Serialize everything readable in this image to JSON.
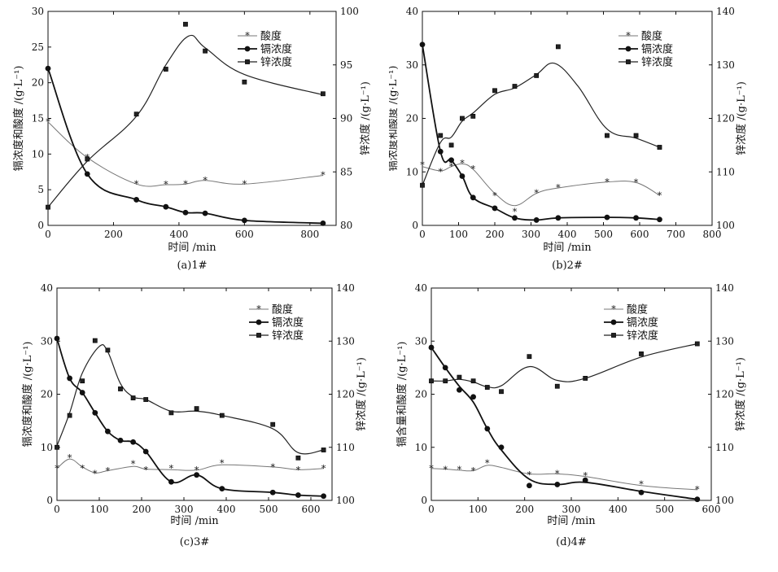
{
  "chart_data": [
    {
      "type": "line",
      "caption": "(a)1#",
      "xlabel": "时间 /min",
      "ylabel_left": "镉浓度和酸度 /(g·L⁻¹)",
      "ylabel_right": "锌浓度 /(g·L⁻¹)",
      "xlim": [
        0,
        880
      ],
      "xticks": [
        0,
        200,
        400,
        600,
        800
      ],
      "ylim_left": [
        0,
        30
      ],
      "yticks_left": [
        0,
        5,
        10,
        15,
        20,
        25,
        30
      ],
      "ylim_right": [
        80,
        100
      ],
      "yticks_right": [
        80,
        85,
        90,
        95,
        100
      ],
      "legend": [
        "酸度",
        "镉浓度",
        "锌浓度"
      ],
      "series": [
        {
          "name": "酸度",
          "axis": "left",
          "marker": "star",
          "x": [
            0,
            120,
            270,
            360,
            420,
            480,
            600,
            840
          ],
          "y": [
            14.5,
            9.5,
            5.8,
            5.7,
            5.8,
            6.3,
            5.8,
            7.0
          ]
        },
        {
          "name": "镉浓度",
          "axis": "left",
          "marker": "dot",
          "x": [
            0,
            120,
            270,
            360,
            420,
            480,
            600,
            840
          ],
          "y": [
            22.0,
            7.2,
            3.6,
            2.6,
            1.8,
            1.7,
            0.7,
            0.3
          ]
        },
        {
          "name": "锌浓度",
          "axis": "right",
          "marker": "square",
          "x": [
            0,
            120,
            270,
            360,
            420,
            480,
            600,
            840
          ],
          "y": [
            81.7,
            86.2,
            90.4,
            94.6,
            98.8,
            96.3,
            93.4,
            92.3
          ],
          "curve_x": [
            0,
            120,
            270,
            360,
            430,
            480,
            600,
            840
          ],
          "curve_y": [
            81.7,
            86.0,
            90.2,
            95.0,
            97.7,
            96.6,
            94.1,
            92.2
          ]
        }
      ]
    },
    {
      "type": "line",
      "caption": "(b)2#",
      "xlabel": "时间 /min",
      "ylabel_left": "镉浓度和酸度 /(g·L⁻¹)",
      "ylabel_right": "锌浓度 /(g·L⁻¹)",
      "xlim": [
        0,
        800
      ],
      "xticks": [
        0,
        100,
        200,
        300,
        400,
        500,
        600,
        700,
        800
      ],
      "ylim_left": [
        0,
        40
      ],
      "yticks_left": [
        0,
        10,
        20,
        30,
        40
      ],
      "ylim_right": [
        100,
        140
      ],
      "yticks_right": [
        100,
        110,
        120,
        130,
        140
      ],
      "legend": [
        "酸度",
        "镉浓度",
        "锌浓度"
      ],
      "series": [
        {
          "name": "酸度",
          "axis": "left",
          "marker": "star",
          "x": [
            0,
            50,
            80,
            110,
            140,
            200,
            255,
            315,
            375,
            510,
            590,
            655
          ],
          "y": [
            11.3,
            10.0,
            11.0,
            11.6,
            10.5,
            5.5,
            2.5,
            6.0,
            7.0,
            8.1,
            8.0,
            5.6
          ],
          "curve_x": [
            0,
            50,
            80,
            110,
            140,
            200,
            255,
            315,
            375,
            510,
            590,
            655
          ],
          "curve_y": [
            11.0,
            10.2,
            11.0,
            11.5,
            10.5,
            6.0,
            3.7,
            6.0,
            7.0,
            8.1,
            8.0,
            5.6
          ]
        },
        {
          "name": "镉浓度",
          "axis": "left",
          "marker": "dot",
          "x": [
            0,
            50,
            80,
            110,
            140,
            200,
            255,
            315,
            375,
            510,
            590,
            655
          ],
          "y": [
            33.8,
            13.8,
            12.2,
            9.2,
            5.2,
            3.2,
            1.4,
            1.0,
            1.4,
            1.5,
            1.4,
            1.1
          ]
        },
        {
          "name": "锌浓度",
          "axis": "right",
          "marker": "square",
          "x": [
            0,
            50,
            80,
            110,
            140,
            200,
            255,
            315,
            375,
            510,
            590,
            655
          ],
          "y": [
            107.5,
            116.8,
            115.0,
            120.0,
            120.4,
            125.2,
            126.0,
            128.0,
            133.4,
            116.8,
            116.8,
            114.6
          ],
          "curve_x": [
            0,
            50,
            80,
            110,
            140,
            200,
            255,
            315,
            365,
            430,
            510,
            590,
            655
          ],
          "curve_y": [
            107.5,
            115.5,
            116.5,
            119.5,
            121.0,
            124.5,
            125.7,
            128.2,
            130.3,
            126.0,
            118.0,
            116.3,
            114.6
          ]
        }
      ]
    },
    {
      "type": "line",
      "caption": "(c)3#",
      "xlabel": "时间 /min",
      "ylabel_left": "镉浓度和酸度 /(g·L⁻¹)",
      "ylabel_right": "锌浓度 /(g·L⁻¹)",
      "xlim": [
        0,
        650
      ],
      "xticks": [
        0,
        100,
        200,
        300,
        400,
        500,
        600
      ],
      "ylim_left": [
        0,
        40
      ],
      "yticks_left": [
        0,
        10,
        20,
        30,
        40
      ],
      "ylim_right": [
        100,
        140
      ],
      "yticks_right": [
        100,
        110,
        120,
        130,
        140
      ],
      "legend": [
        "酸度",
        "镉浓度",
        "锌浓度"
      ],
      "series": [
        {
          "name": "酸度",
          "axis": "left",
          "marker": "star",
          "x": [
            0,
            30,
            60,
            90,
            120,
            180,
            210,
            270,
            330,
            390,
            510,
            570,
            630
          ],
          "y": [
            6.0,
            8.0,
            6.0,
            5.0,
            5.5,
            6.8,
            5.7,
            6.0,
            5.7,
            7.0,
            6.2,
            5.7,
            6.0
          ],
          "curve_x": [
            0,
            30,
            60,
            90,
            120,
            180,
            210,
            270,
            330,
            390,
            510,
            570,
            630
          ],
          "curve_y": [
            6.0,
            7.8,
            6.3,
            5.2,
            5.6,
            6.4,
            5.9,
            5.8,
            5.7,
            6.7,
            6.3,
            5.8,
            6.0
          ]
        },
        {
          "name": "镉浓度",
          "axis": "left",
          "marker": "dot",
          "x": [
            0,
            30,
            60,
            90,
            120,
            150,
            180,
            210,
            270,
            330,
            390,
            510,
            570,
            630
          ],
          "y": [
            30.5,
            23.0,
            20.3,
            16.5,
            13.0,
            11.3,
            11.0,
            9.2,
            3.5,
            4.8,
            2.2,
            1.5,
            1.0,
            0.8
          ]
        },
        {
          "name": "锌浓度",
          "axis": "right",
          "marker": "square",
          "x": [
            0,
            30,
            60,
            90,
            120,
            150,
            180,
            210,
            270,
            330,
            390,
            510,
            570,
            630
          ],
          "y": [
            110.0,
            116.0,
            122.5,
            130.1,
            128.3,
            121.0,
            119.3,
            119.0,
            116.5,
            117.3,
            116.0,
            114.3,
            108.0,
            109.5
          ],
          "curve_x": [
            0,
            30,
            60,
            100,
            120,
            150,
            180,
            210,
            270,
            330,
            390,
            510,
            570,
            630
          ],
          "curve_y": [
            110.3,
            116.5,
            124.0,
            129.0,
            128.0,
            122.0,
            119.5,
            119.0,
            116.8,
            116.8,
            116.0,
            113.5,
            109.0,
            109.5
          ]
        }
      ]
    },
    {
      "type": "line",
      "caption": "(d)4#",
      "xlabel": "时间 /min",
      "ylabel_left": "镉含量和酸度 /(g·L⁻¹)",
      "ylabel_right": "锌浓度 /(g·L⁻¹)",
      "xlim": [
        0,
        600
      ],
      "xticks": [
        0,
        100,
        200,
        300,
        400,
        500,
        600
      ],
      "ylim_left": [
        0,
        40
      ],
      "yticks_left": [
        0,
        10,
        20,
        30,
        40
      ],
      "ylim_right": [
        100,
        140
      ],
      "yticks_right": [
        100,
        110,
        120,
        130,
        140
      ],
      "legend": [
        "酸度",
        "镉浓度",
        "锌浓度"
      ],
      "series": [
        {
          "name": "酸度",
          "axis": "left",
          "marker": "star",
          "x": [
            0,
            30,
            60,
            90,
            120,
            210,
            270,
            330,
            450,
            570
          ],
          "y": [
            6.0,
            5.8,
            5.8,
            5.5,
            7.0,
            4.8,
            5.0,
            4.6,
            3.0,
            2.0
          ],
          "curve_x": [
            0,
            30,
            60,
            90,
            120,
            150,
            210,
            270,
            330,
            450,
            570
          ],
          "curve_y": [
            6.0,
            5.9,
            5.7,
            5.6,
            6.6,
            6.2,
            5.0,
            5.0,
            4.5,
            2.8,
            2.0
          ]
        },
        {
          "name": "镉浓度",
          "axis": "left",
          "marker": "dot",
          "x": [
            0,
            30,
            60,
            90,
            120,
            150,
            210,
            270,
            330,
            450,
            570
          ],
          "y": [
            28.8,
            25.0,
            20.8,
            19.5,
            13.5,
            10.0,
            2.8,
            3.0,
            3.8,
            1.5,
            0.2
          ],
          "curve_x": [
            0,
            30,
            60,
            90,
            120,
            150,
            210,
            270,
            330,
            450,
            570
          ],
          "curve_y": [
            28.8,
            25.0,
            21.5,
            18.5,
            13.5,
            9.5,
            4.0,
            3.0,
            3.4,
            1.7,
            0.2
          ]
        },
        {
          "name": "锌浓度",
          "axis": "right",
          "marker": "square",
          "x": [
            0,
            30,
            60,
            90,
            120,
            150,
            210,
            270,
            330,
            450,
            570
          ],
          "y": [
            122.5,
            122.5,
            123.2,
            122.5,
            121.3,
            120.5,
            127.1,
            121.5,
            123.0,
            127.6,
            129.5
          ],
          "curve_x": [
            0,
            30,
            60,
            90,
            120,
            150,
            210,
            270,
            330,
            450,
            570
          ],
          "curve_y": [
            122.5,
            122.5,
            122.8,
            122.3,
            121.4,
            121.6,
            125.2,
            122.6,
            123.0,
            127.0,
            129.5
          ]
        }
      ]
    }
  ]
}
